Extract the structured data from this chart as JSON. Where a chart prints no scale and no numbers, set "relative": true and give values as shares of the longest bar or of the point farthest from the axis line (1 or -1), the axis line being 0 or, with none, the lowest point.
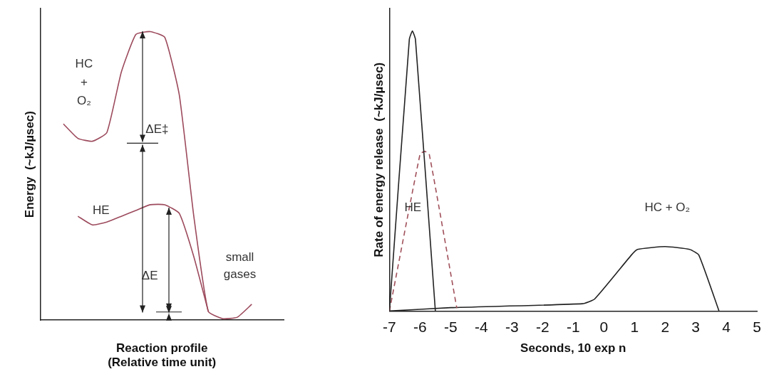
{
  "chart_data": [
    {
      "type": "line",
      "relative": true,
      "xlabel": "Reaction profile\n(Relative time unit)",
      "ylabel": "Energy  (~kJ/µsec)",
      "legend": false,
      "marker": "none",
      "categories": [
        null,
        null,
        null,
        null,
        null,
        null,
        null,
        null,
        null,
        null,
        null,
        null,
        null,
        null
      ],
      "series": [
        {
          "name": "HC + O₂",
          "color": "#9c4a5c",
          "values": [
            0.68,
            0.63,
            0.62,
            0.65,
            0.86,
            0.99,
            1.0,
            0.98,
            0.78,
            0.36,
            0.03,
            0.005,
            0.01,
            0.055
          ]
        },
        {
          "name": "HE",
          "color": "#9c4a5c",
          "values": [
            null,
            0.36,
            0.33,
            0.34,
            0.36,
            0.38,
            0.4,
            0.4,
            0.37,
            0.22,
            0.03,
            null,
            null,
            null
          ]
        }
      ],
      "annotations": [
        "ΔE‡",
        "ΔE",
        "small gases"
      ]
    },
    {
      "type": "line",
      "relative": true,
      "xlabel": "Seconds, 10 exp n",
      "ylabel": "Rate of energy release  (~kJ/µsec)",
      "legend": false,
      "marker": "none",
      "xlim": [
        -7,
        5
      ],
      "xticks": [
        -7,
        -6,
        -5,
        -4,
        -3,
        -2,
        -1,
        0,
        1,
        2,
        3,
        4,
        5
      ],
      "series": [
        {
          "name": "HE",
          "color": "#222222",
          "x": [
            -7,
            -6.35,
            -6.25,
            -6.15,
            -5.5
          ],
          "values": [
            0,
            0.97,
            1.0,
            0.97,
            0
          ]
        },
        {
          "color": "#a0505a",
          "line_style": "dashed",
          "x": [
            -7,
            -6.0,
            -5.85,
            -5.7,
            -4.8
          ],
          "values": [
            0,
            0.56,
            0.57,
            0.56,
            0.01
          ]
        },
        {
          "name": "HC + O₂",
          "color": "#222222",
          "x": [
            -7,
            -5,
            -0.7,
            -0.3,
            0.9,
            1.1,
            2.0,
            2.8,
            3.1,
            3.76
          ],
          "values": [
            0,
            0.012,
            0.026,
            0.043,
            0.2,
            0.22,
            0.23,
            0.22,
            0.2,
            0
          ]
        }
      ]
    }
  ]
}
